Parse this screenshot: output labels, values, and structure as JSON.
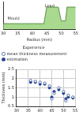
{
  "chart_data": [
    {
      "type": "area",
      "xlabel": "Radius (mm)",
      "annotations": [
        "Lead",
        "Mould"
      ],
      "x": [
        30,
        44,
        45,
        49,
        50,
        51.5,
        52,
        55
      ],
      "values": [
        1,
        1,
        4,
        4,
        1.5,
        1.5,
        4,
        4
      ],
      "color": "#a9d98f",
      "xlim": [
        30,
        55
      ],
      "xticks": [
        30,
        35,
        40,
        45,
        50,
        55
      ],
      "ylim": [
        0,
        5
      ],
      "yticks": [],
      "grid": false,
      "tick_labels": "x"
    },
    {
      "type": "scatter",
      "ylabel": "Thickness (mm)",
      "legend_title": "Experience",
      "series": [
        {
          "name": "mean thickness measurement",
          "color": "#1f3f8f",
          "marker": "open_circle",
          "x": [
            36,
            38,
            40,
            42,
            44,
            45,
            46,
            48,
            50,
            51,
            52,
            54
          ],
          "values": [
            1.9,
            1.85,
            1.8,
            1.75,
            1.6,
            0.9,
            1.2,
            1.5,
            1.3,
            0.8,
            1.1,
            1.0
          ]
        },
        {
          "name": "estimation",
          "color": "#1f3f8f",
          "marker": "circle",
          "x": [
            36,
            38,
            40,
            42,
            44,
            45,
            46,
            48,
            50,
            51,
            52,
            54
          ],
          "values": [
            1.8,
            1.8,
            1.7,
            1.7,
            1.5,
            1.0,
            1.3,
            1.4,
            1.2,
            0.9,
            1.0,
            0.95
          ]
        }
      ],
      "xlim": [
        30,
        55
      ],
      "xticks": [
        30,
        35,
        40,
        45,
        50,
        55
      ],
      "ylim": [
        0.5,
        2.5
      ],
      "yticks": [
        0.5,
        1,
        1.5,
        2,
        2.5
      ],
      "grid": true,
      "legend": "top"
    }
  ]
}
